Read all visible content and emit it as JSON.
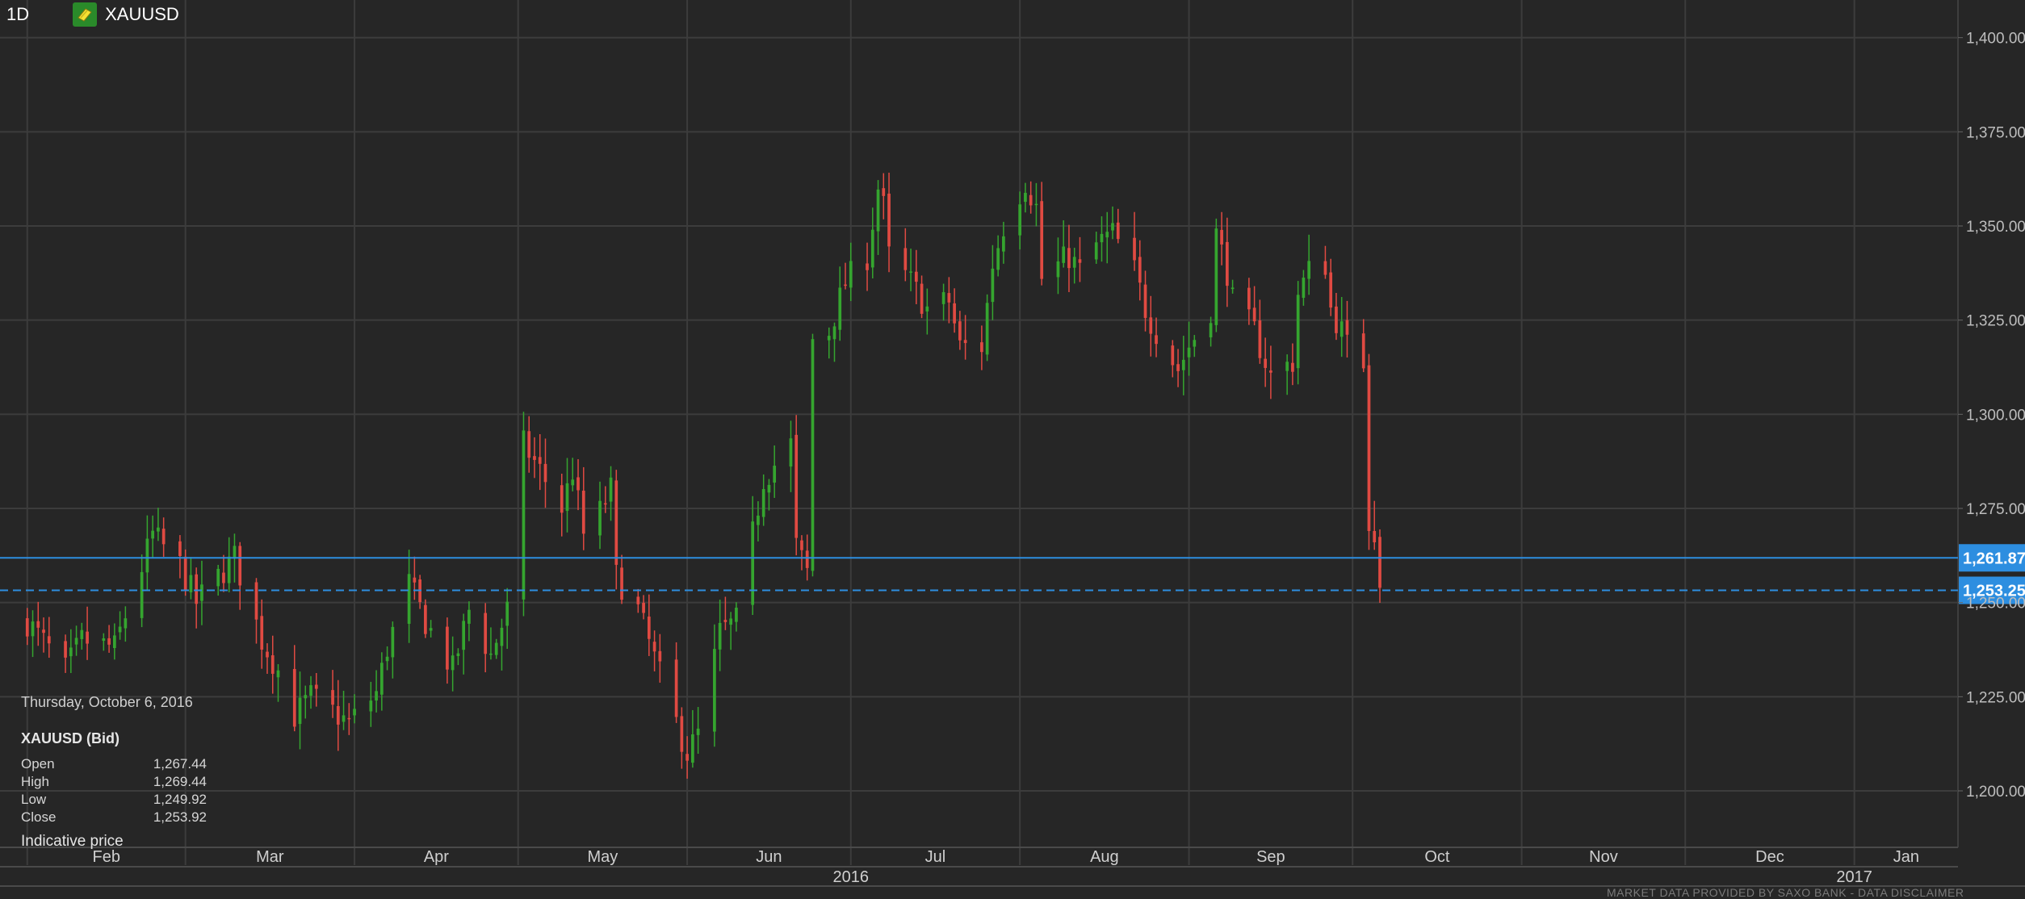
{
  "toolbar": {
    "timeframe": "1D",
    "symbol": "XAUUSD",
    "symbol_icon": "gold-bar-icon"
  },
  "info_panel": {
    "date": "Thursday, October 6, 2016",
    "instrument": "XAUUSD (Bid)",
    "rows": [
      {
        "label": "Open",
        "value": "1,267.44"
      },
      {
        "label": "High",
        "value": "1,269.44"
      },
      {
        "label": "Low",
        "value": "1,249.92"
      },
      {
        "label": "Close",
        "value": "1,253.92"
      }
    ],
    "indicative": "Indicative price"
  },
  "footer": "MARKET DATA PROVIDED BY SAXO BANK - DATA DISCLAIMER",
  "colors": {
    "background": "#262626",
    "grid": "#3c3c3c",
    "up": "#35a52f",
    "down": "#e04a42",
    "price_line": "#2d8ee0",
    "price_tag": "#2d8ee0"
  },
  "chart_data": {
    "type": "candlestick",
    "title": "",
    "xlabel": "",
    "ylabel": "",
    "ylim": [
      1185,
      1410
    ],
    "xlim": [
      "2016-01-27",
      "2017-01-20"
    ],
    "yticks": [
      1200,
      1225,
      1250,
      1275,
      1300,
      1325,
      1350,
      1375,
      1400
    ],
    "ytick_labels": [
      "1,200.00",
      "1,225.00",
      "1,250.00",
      "1,275.00",
      "1,300.00",
      "1,325.00",
      "1,350.00",
      "1,375.00",
      "1,400.00"
    ],
    "month_labels": [
      {
        "label": "Feb",
        "date": "2016-02-01"
      },
      {
        "label": "Mar",
        "date": "2016-03-01"
      },
      {
        "label": "Apr",
        "date": "2016-04-01"
      },
      {
        "label": "May",
        "date": "2016-05-01"
      },
      {
        "label": "Jun",
        "date": "2016-06-01"
      },
      {
        "label": "Jul",
        "date": "2016-07-01"
      },
      {
        "label": "Aug",
        "date": "2016-08-01"
      },
      {
        "label": "Sep",
        "date": "2016-09-01"
      },
      {
        "label": "Oct",
        "date": "2016-10-01"
      },
      {
        "label": "Nov",
        "date": "2016-11-01"
      },
      {
        "label": "Dec",
        "date": "2016-12-01"
      },
      {
        "label": "Jan",
        "date": "2017-01-01"
      }
    ],
    "year_labels": [
      {
        "label": "2016",
        "date": "2016-07-01"
      },
      {
        "label": "2017",
        "date": "2017-01-01"
      }
    ],
    "price_lines": [
      {
        "value": 1261.87,
        "label": "1,261.87",
        "style": "solid"
      },
      {
        "value": 1253.25,
        "label": "1,253.25",
        "style": "dashed"
      }
    ],
    "grid": true,
    "waypoints": [
      [
        "2016-02-01",
        1245
      ],
      [
        "2016-02-08",
        1232
      ],
      [
        "2016-02-11",
        1240
      ],
      [
        "2016-02-17",
        1238
      ],
      [
        "2016-02-24",
        1268
      ],
      [
        "2016-02-29",
        1260
      ],
      [
        "2016-03-03",
        1250
      ],
      [
        "2016-03-10",
        1262
      ],
      [
        "2016-03-15",
        1240
      ],
      [
        "2016-03-18",
        1232
      ],
      [
        "2016-03-21",
        1220
      ],
      [
        "2016-03-24",
        1225
      ],
      [
        "2016-03-31",
        1218
      ],
      [
        "2016-04-05",
        1226
      ],
      [
        "2016-04-07",
        1238
      ],
      [
        "2016-04-11",
        1255
      ],
      [
        "2016-04-14",
        1245
      ],
      [
        "2016-04-19",
        1232
      ],
      [
        "2016-04-22",
        1248
      ],
      [
        "2016-04-26",
        1236
      ],
      [
        "2016-04-29",
        1248
      ],
      [
        "2016-05-02",
        1292
      ],
      [
        "2016-05-05",
        1285
      ],
      [
        "2016-05-09",
        1275
      ],
      [
        "2016-05-11",
        1285
      ],
      [
        "2016-05-13",
        1268
      ],
      [
        "2016-05-16",
        1274
      ],
      [
        "2016-05-18",
        1280
      ],
      [
        "2016-05-19",
        1257
      ],
      [
        "2016-05-23",
        1248
      ],
      [
        "2016-05-26",
        1235
      ],
      [
        "2016-05-30",
        1218
      ],
      [
        "2016-06-01",
        1210
      ],
      [
        "2016-06-03",
        1215
      ],
      [
        "2016-06-07",
        1242
      ],
      [
        "2016-06-10",
        1245
      ],
      [
        "2016-06-13",
        1268
      ],
      [
        "2016-06-15",
        1283
      ],
      [
        "2016-06-20",
        1292
      ],
      [
        "2016-06-21",
        1265
      ],
      [
        "2016-06-23",
        1258
      ],
      [
        "2016-06-24",
        1320
      ],
      [
        "2016-06-27",
        1322
      ],
      [
        "2016-06-30",
        1335
      ],
      [
        "2016-07-04",
        1342
      ],
      [
        "2016-07-06",
        1360
      ],
      [
        "2016-07-07",
        1355
      ],
      [
        "2016-07-08",
        1342
      ],
      [
        "2016-07-12",
        1335
      ],
      [
        "2016-07-15",
        1328
      ],
      [
        "2016-07-19",
        1330
      ],
      [
        "2016-07-21",
        1318
      ],
      [
        "2016-07-25",
        1318
      ],
      [
        "2016-07-27",
        1340
      ],
      [
        "2016-07-29",
        1350
      ],
      [
        "2016-08-02",
        1362
      ],
      [
        "2016-08-04",
        1355
      ],
      [
        "2016-08-05",
        1336
      ],
      [
        "2016-08-10",
        1342
      ],
      [
        "2016-08-12",
        1338
      ],
      [
        "2016-08-15",
        1345
      ],
      [
        "2016-08-18",
        1348
      ],
      [
        "2016-08-22",
        1338
      ],
      [
        "2016-08-24",
        1328
      ],
      [
        "2016-08-26",
        1322
      ],
      [
        "2016-08-30",
        1312
      ],
      [
        "2016-09-01",
        1318
      ],
      [
        "2016-09-05",
        1328
      ],
      [
        "2016-09-06",
        1348
      ],
      [
        "2016-09-08",
        1338
      ],
      [
        "2016-09-09",
        1330
      ],
      [
        "2016-09-13",
        1322
      ],
      [
        "2016-09-16",
        1310
      ],
      [
        "2016-09-20",
        1314
      ],
      [
        "2016-09-21",
        1332
      ],
      [
        "2016-09-23",
        1338
      ],
      [
        "2016-09-26",
        1340
      ],
      [
        "2016-09-27",
        1328
      ],
      [
        "2016-09-29",
        1322
      ],
      [
        "2016-09-30",
        1318
      ],
      [
        "2016-10-03",
        1314
      ]
    ],
    "last_candles": [
      {
        "date": "2016-10-04",
        "open": 1313,
        "high": 1316,
        "low": 1264,
        "close": 1269
      },
      {
        "date": "2016-10-05",
        "open": 1269,
        "high": 1277,
        "low": 1264,
        "close": 1266
      },
      {
        "date": "2016-10-06",
        "open": 1267.44,
        "high": 1269.44,
        "low": 1249.92,
        "close": 1253.92
      }
    ]
  }
}
